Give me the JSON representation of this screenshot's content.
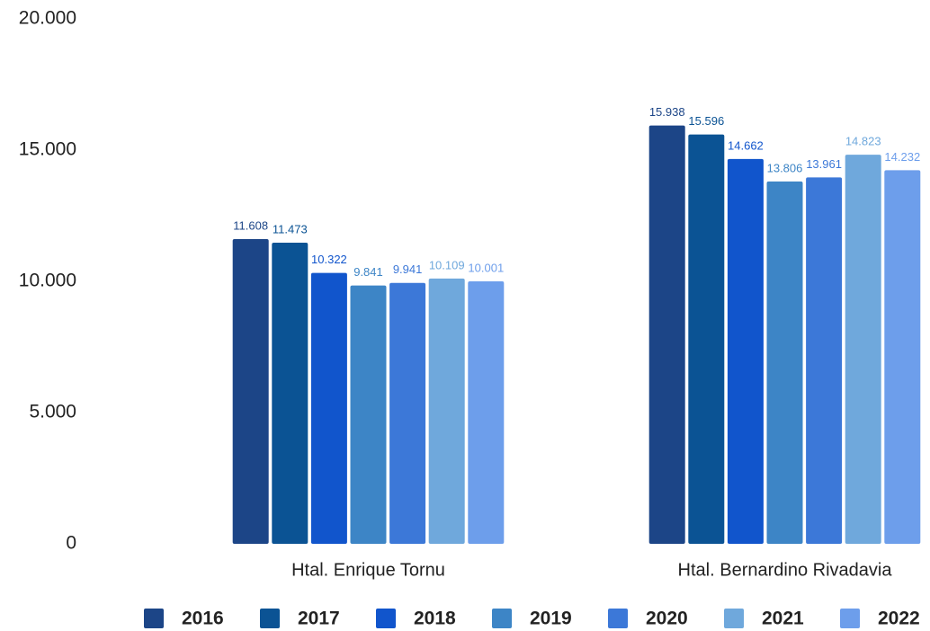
{
  "chart_data": {
    "type": "bar",
    "categories": [
      "Htal. Enrique Tornu",
      "Htal. Bernardino Rivadavia"
    ],
    "series": [
      {
        "name": "2016",
        "color": "#1c4587",
        "values": [
          11608,
          15938
        ],
        "value_labels": [
          "11.608",
          "15.938"
        ]
      },
      {
        "name": "2017",
        "color": "#0b5394",
        "values": [
          11473,
          15596
        ],
        "value_labels": [
          "11.473",
          "15.596"
        ]
      },
      {
        "name": "2018",
        "color": "#1155cc",
        "values": [
          10322,
          14662
        ],
        "value_labels": [
          "10.322",
          "14.662"
        ]
      },
      {
        "name": "2019",
        "color": "#3d85c6",
        "values": [
          9841,
          13806
        ],
        "value_labels": [
          "9.841",
          "13.806"
        ]
      },
      {
        "name": "2020",
        "color": "#3c78d8",
        "values": [
          9941,
          13961
        ],
        "value_labels": [
          "9.941",
          "13.961"
        ]
      },
      {
        "name": "2021",
        "color": "#6fa8dc",
        "values": [
          10109,
          14823
        ],
        "value_labels": [
          "10.109",
          "14.823"
        ]
      },
      {
        "name": "2022",
        "color": "#6d9eeb",
        "values": [
          10001,
          14232
        ],
        "value_labels": [
          "10.001",
          "14.232"
        ]
      }
    ],
    "ylim": [
      0,
      20000
    ],
    "yticks": [
      0,
      {
        "value": 5000,
        "label": "5.000"
      },
      {
        "value": 10000,
        "label": "10.000"
      },
      {
        "value": 15000,
        "label": "15.000"
      },
      {
        "value": 20000,
        "label": "20.000"
      }
    ],
    "grid": false,
    "legend": "bottom"
  }
}
